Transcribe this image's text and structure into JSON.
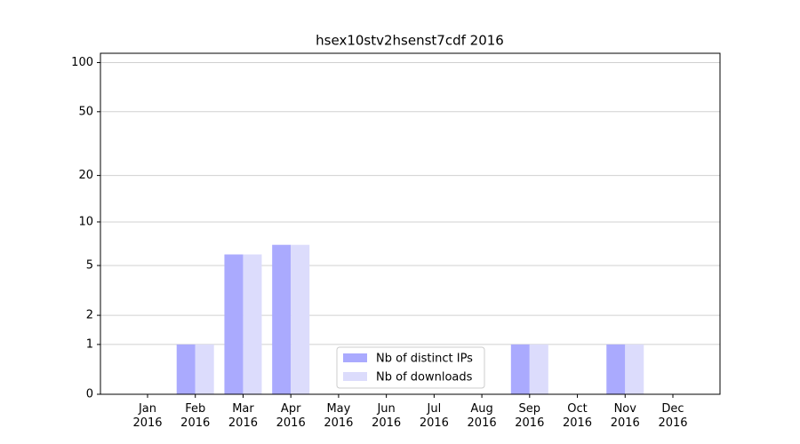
{
  "chart_data": {
    "type": "bar",
    "title": "hsex10stv2hsenst7cdf 2016",
    "categories": [
      "Jan\n2016",
      "Feb\n2016",
      "Mar\n2016",
      "Apr\n2016",
      "May\n2016",
      "Jun\n2016",
      "Jul\n2016",
      "Aug\n2016",
      "Sep\n2016",
      "Oct\n2016",
      "Nov\n2016",
      "Dec\n2016"
    ],
    "series": [
      {
        "name": "Nb of distinct IPs",
        "color": "#aaaafe",
        "values": [
          0,
          1,
          6,
          7,
          0,
          0,
          0,
          0,
          1,
          0,
          1,
          0
        ]
      },
      {
        "name": "Nb of downloads",
        "color": "#dcdcfc",
        "values": [
          0,
          1,
          6,
          7,
          0,
          0,
          0,
          0,
          1,
          0,
          1,
          0
        ]
      }
    ],
    "y_scale": "log1p",
    "ylim": [
      0,
      114
    ],
    "yticks": [
      0,
      1,
      2,
      5,
      10,
      20,
      50,
      100
    ],
    "grid": true,
    "legend": "lower center"
  }
}
